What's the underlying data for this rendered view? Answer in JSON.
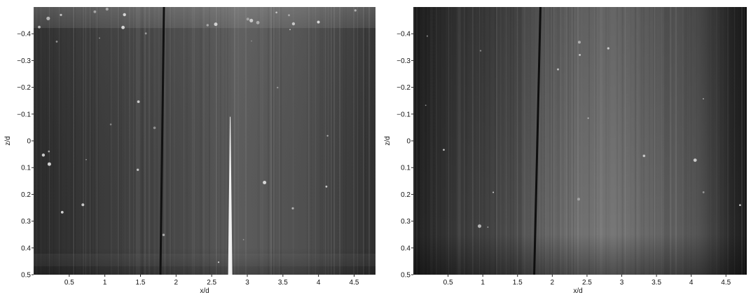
{
  "figure": {
    "panels": [
      {
        "id": "left",
        "xlabel": "x/d",
        "ylabel": "z/d",
        "x_ticks": [
          "0.5",
          "1",
          "1.5",
          "2",
          "2.5",
          "3",
          "3.5",
          "4",
          "4.5"
        ],
        "y_ticks": [
          "−0.4",
          "−0.3",
          "−0.2",
          "−0.1",
          "0",
          "0.1",
          "0.2",
          "0.3",
          "0.4",
          "0.5"
        ],
        "x_range": [
          0,
          4.8
        ],
        "z_range": [
          -0.5,
          0.5
        ],
        "dark_line_x": [
          1.83,
          1.78
        ],
        "bright_streak_x": 2.76,
        "bright_streak_top_z": -0.09
      },
      {
        "id": "right",
        "xlabel": "x/d",
        "ylabel": "z/d",
        "x_ticks": [
          "0.5",
          "1",
          "1.5",
          "2",
          "2.5",
          "3",
          "3.5",
          "4",
          "4.5"
        ],
        "y_ticks": [
          "−0.4",
          "−0.3",
          "−0.2",
          "−0.1",
          "0",
          "0.1",
          "0.2",
          "0.3",
          "0.4",
          "0.5"
        ],
        "x_range": [
          0,
          4.8
        ],
        "z_range": [
          -0.5,
          0.5
        ],
        "dark_line_x": [
          1.83,
          1.74
        ]
      }
    ],
    "colors": {
      "image_dark": "#1e1e1e",
      "image_mid": "#5a5a5a",
      "image_light": "#8a8a8a",
      "axis_text": "#111111"
    }
  }
}
